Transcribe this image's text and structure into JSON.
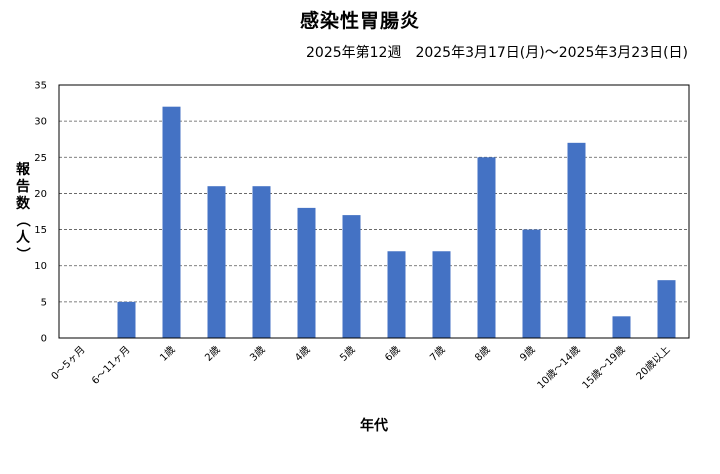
{
  "chart_data": {
    "type": "bar",
    "title": "感染性胃腸炎",
    "subtitle": "2025年第12週　2025年3月17日(月)〜2025年3月23日(日)",
    "xlabel": "年代",
    "ylabel": "報告数（人）",
    "categories": [
      "0〜5ヶ月",
      "6〜11ヶ月",
      "1歳",
      "2歳",
      "3歳",
      "4歳",
      "5歳",
      "6歳",
      "7歳",
      "8歳",
      "9歳",
      "10歳〜14歳",
      "15歳〜19歳",
      "20歳以上"
    ],
    "values": [
      0,
      5,
      32,
      21,
      21,
      18,
      17,
      12,
      12,
      25,
      15,
      27,
      3,
      8
    ],
    "ylim": [
      0,
      35
    ],
    "yticks": [
      0,
      5,
      10,
      15,
      20,
      25,
      30,
      35
    ],
    "grid": true,
    "bar_color": "#4472C4"
  }
}
